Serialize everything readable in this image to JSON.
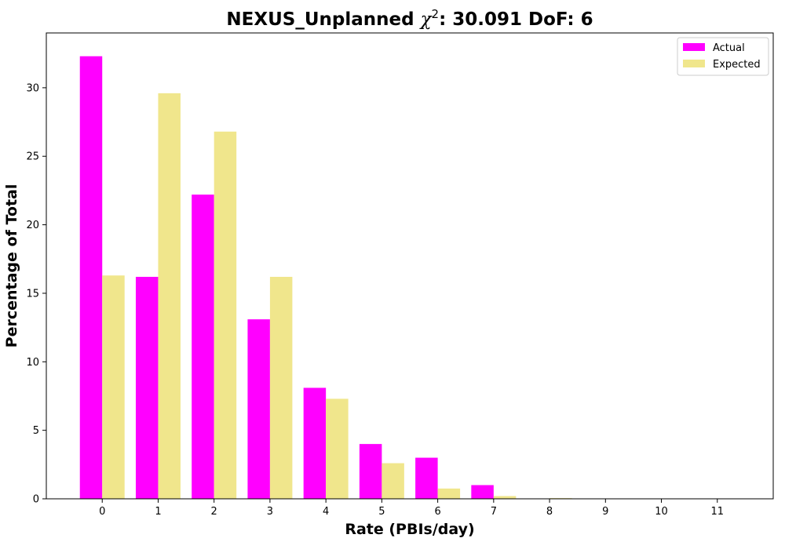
{
  "chart_data": {
    "type": "bar",
    "title": {
      "prefix": "NEXUS_Unplanned ",
      "symbol": "χ",
      "superscript": "2",
      "suffix": ": 30.091 DoF: 6"
    },
    "xlabel": "Rate (PBIs/day)",
    "ylabel": "Percentage of Total",
    "categories": [
      "0",
      "1",
      "2",
      "3",
      "4",
      "5",
      "6",
      "7",
      "8",
      "9",
      "10",
      "11"
    ],
    "xlim": [
      -1,
      12
    ],
    "ylim": [
      0,
      34
    ],
    "yticks": [
      0,
      5,
      10,
      15,
      20,
      25,
      30
    ],
    "legend_position": "top-right",
    "series": [
      {
        "name": "Actual",
        "color": "#ff00ff",
        "values": [
          32.3,
          16.2,
          22.2,
          13.1,
          8.1,
          4.0,
          3.0,
          1.0,
          0,
          0,
          0,
          0
        ]
      },
      {
        "name": "Expected",
        "color": "#f0e68c",
        "values": [
          16.3,
          29.6,
          26.8,
          16.2,
          7.3,
          2.6,
          0.75,
          0.2,
          0.05,
          0.01,
          0,
          0
        ]
      }
    ]
  }
}
